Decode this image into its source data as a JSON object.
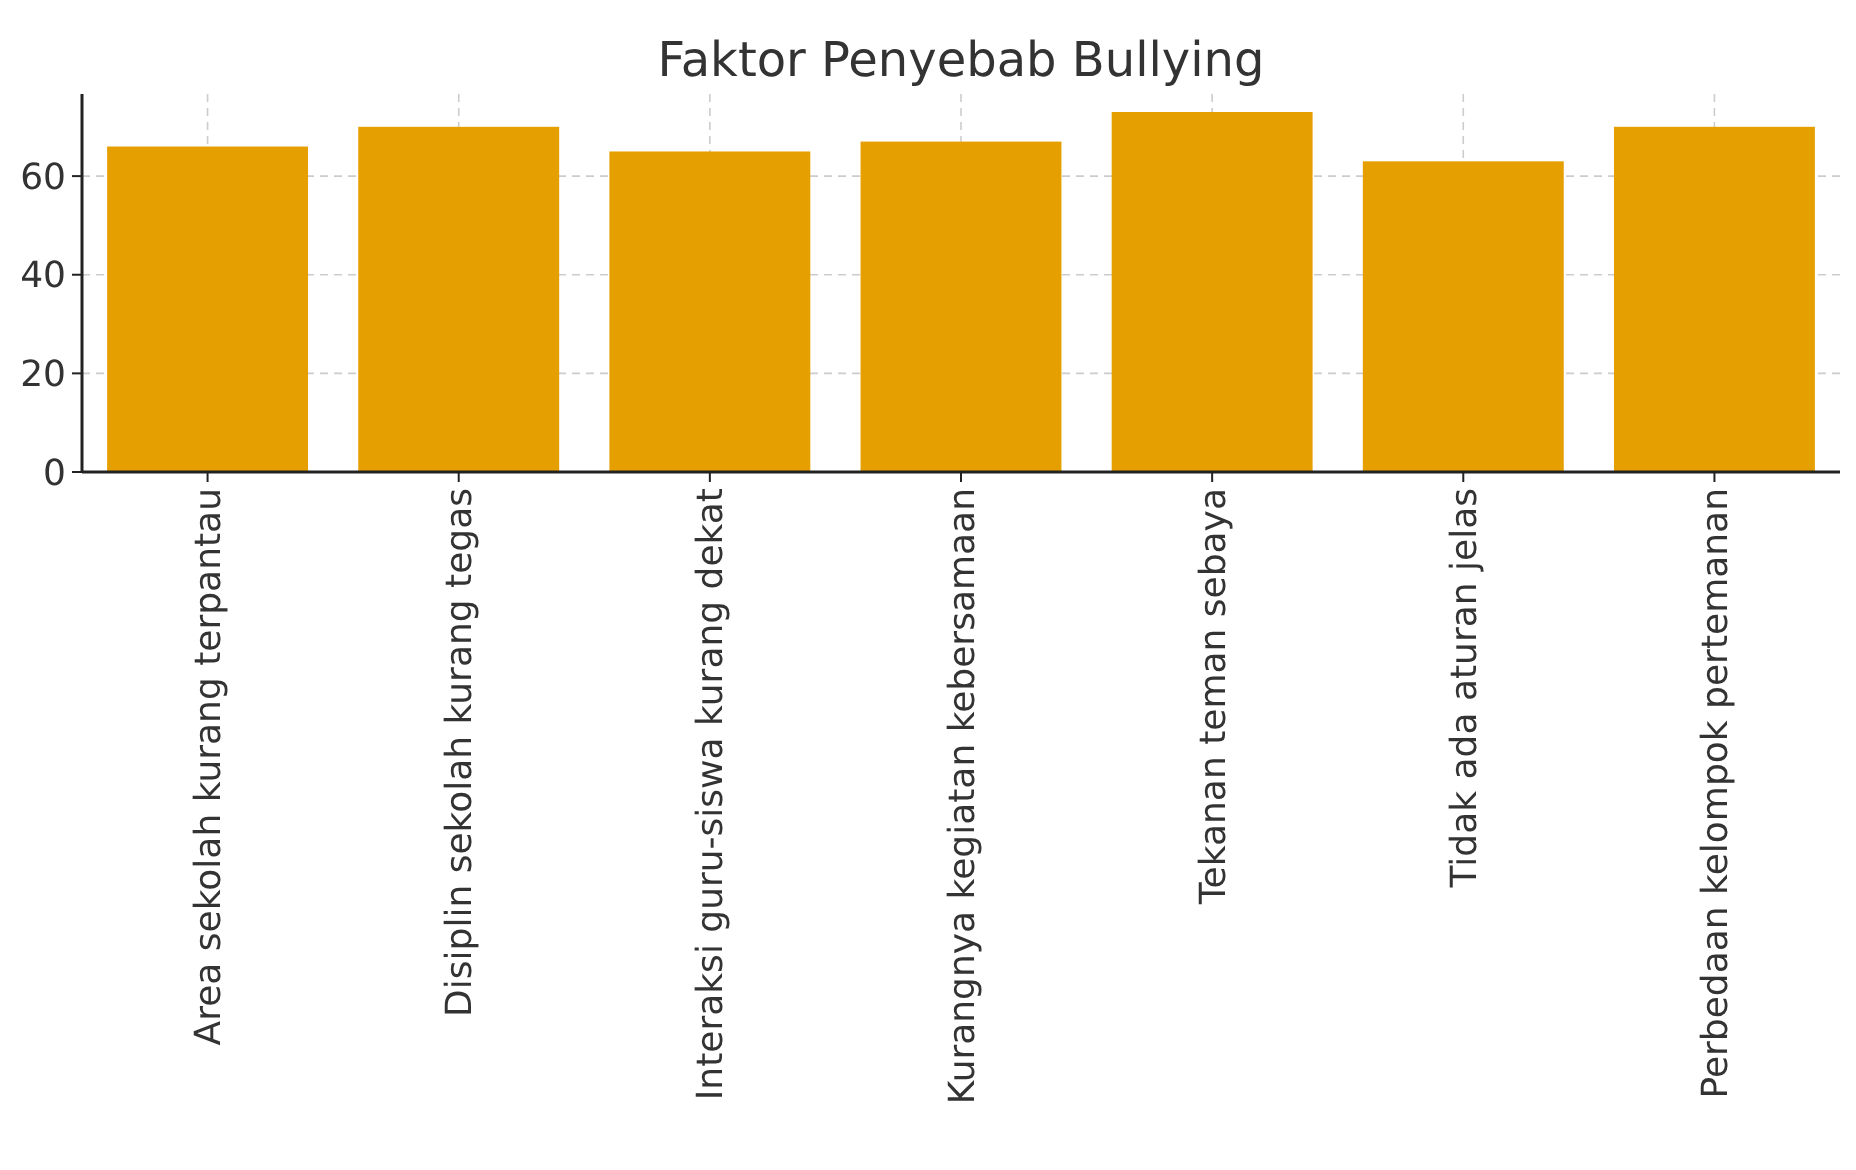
{
  "chart_data": {
    "type": "bar",
    "title": "Faktor Penyebab Bullying",
    "categories": [
      "Area sekolah kurang terpantau",
      "Disiplin sekolah kurang tegas",
      "Interaksi guru-siswa kurang dekat",
      "Kurangnya kegiatan kebersamaan",
      "Tekanan teman sebaya",
      "Tidak ada aturan jelas",
      "Perbedaan kelompok pertemanan"
    ],
    "values": [
      66,
      70,
      65,
      67,
      73,
      63,
      70
    ],
    "color": "#e69f00",
    "ylim": [
      0,
      76.65
    ],
    "yticks": [
      0,
      20,
      40,
      60
    ],
    "grid": true
  }
}
